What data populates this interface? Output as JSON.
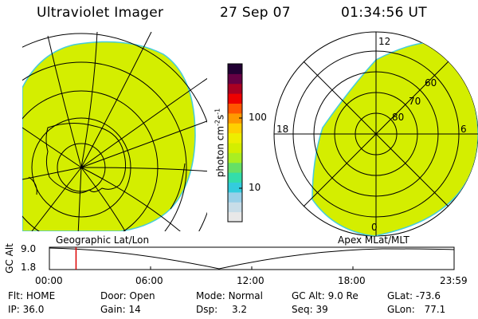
{
  "header": {
    "instrument": "Ultraviolet Imager",
    "date": "27 Sep 07",
    "time": "01:34:56 UT"
  },
  "left_panel": {
    "caption": "Geographic Lat/Lon"
  },
  "right_panel": {
    "caption": "Apex MLat/MLT",
    "mlt_labels": {
      "top": "12",
      "left": "18",
      "right": "6",
      "bottom": "0"
    },
    "mlat_labels": [
      "60",
      "70",
      "80"
    ]
  },
  "colorbar": {
    "unit_label": "photon cm",
    "unit_exp1": "-2",
    "unit_mid": "s",
    "unit_exp2": "-1",
    "tick_100": "100",
    "tick_10": "10",
    "colors": [
      "#e8e8e8",
      "#c8dde8",
      "#99d0e8",
      "#33ccdd",
      "#33ddaa",
      "#66e066",
      "#aaee22",
      "#d4ee00",
      "#eeee00",
      "#ffd000",
      "#ff9900",
      "#ff5500",
      "#ee0000",
      "#aa0022",
      "#660044",
      "#220033"
    ]
  },
  "altitude_plot": {
    "ylabel": "GC Alt",
    "ymax_label": "9.0",
    "ymin_label": "1.8",
    "x_ticks": [
      "00:00",
      "06:00",
      "12:00",
      "18:00",
      "23:59"
    ],
    "current_time_hours": 1.58
  },
  "status": {
    "flt_label": "Flt:",
    "flt_value": "HOME",
    "ip_label": "IP:",
    "ip_value": "36.0",
    "door_label": "Door:",
    "door_value": "Open",
    "gain_label": "Gain:",
    "gain_value": "14",
    "mode_label": "Mode:",
    "mode_value": "Normal",
    "dsp_label": "Dsp:",
    "dsp_value": "3.2",
    "gcalt_label": "GC Alt:",
    "gcalt_value": "9.0 Re",
    "seq_label": "Seq:",
    "seq_value": "39",
    "glat_label": "GLat:",
    "glat_value": "-73.6",
    "glon_label": "GLon:",
    "glon_value": "77.1"
  },
  "colors": {
    "aurora_fill": "#d4ee00",
    "aurora_edge": "#44ccdd",
    "marker": "#dd0000"
  }
}
